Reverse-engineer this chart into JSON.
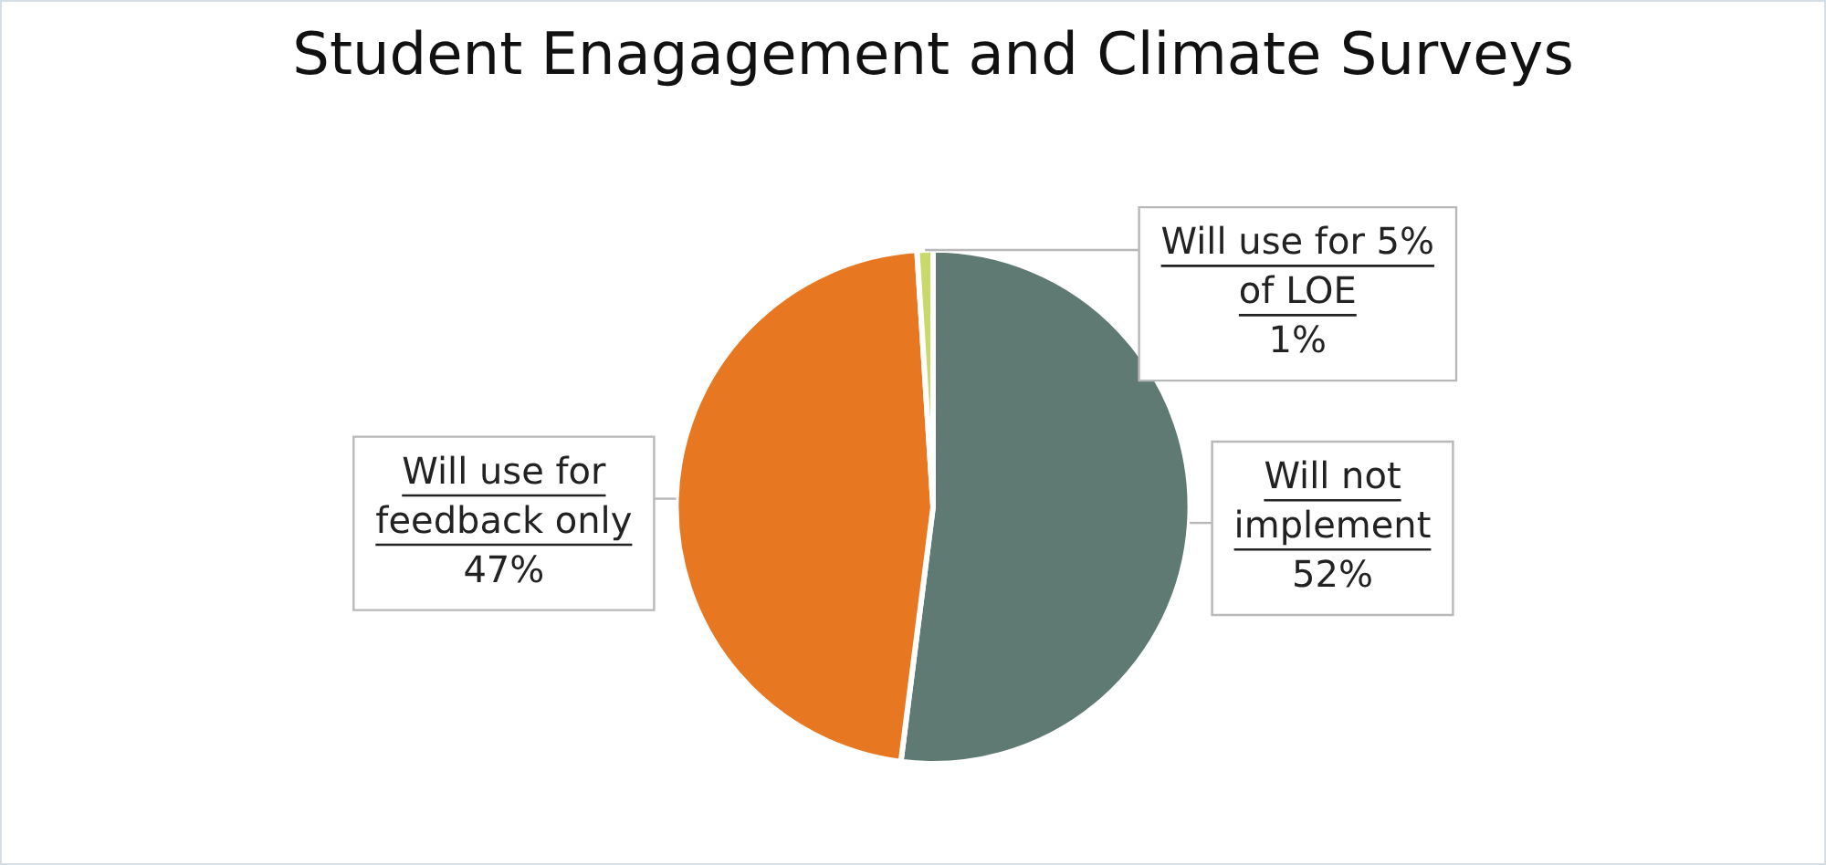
{
  "chart_data": {
    "type": "pie",
    "title": "Student Enagagement and Climate Surveys",
    "categories": [
      "Will not implement",
      "Will use for feedback only",
      "Will use for 5% of LOE"
    ],
    "values": [
      52,
      47,
      1
    ],
    "colors": [
      "#5f7a72",
      "#e87722",
      "#c9d96a"
    ],
    "value_labels": [
      "52%",
      "47%",
      "1%"
    ]
  }
}
